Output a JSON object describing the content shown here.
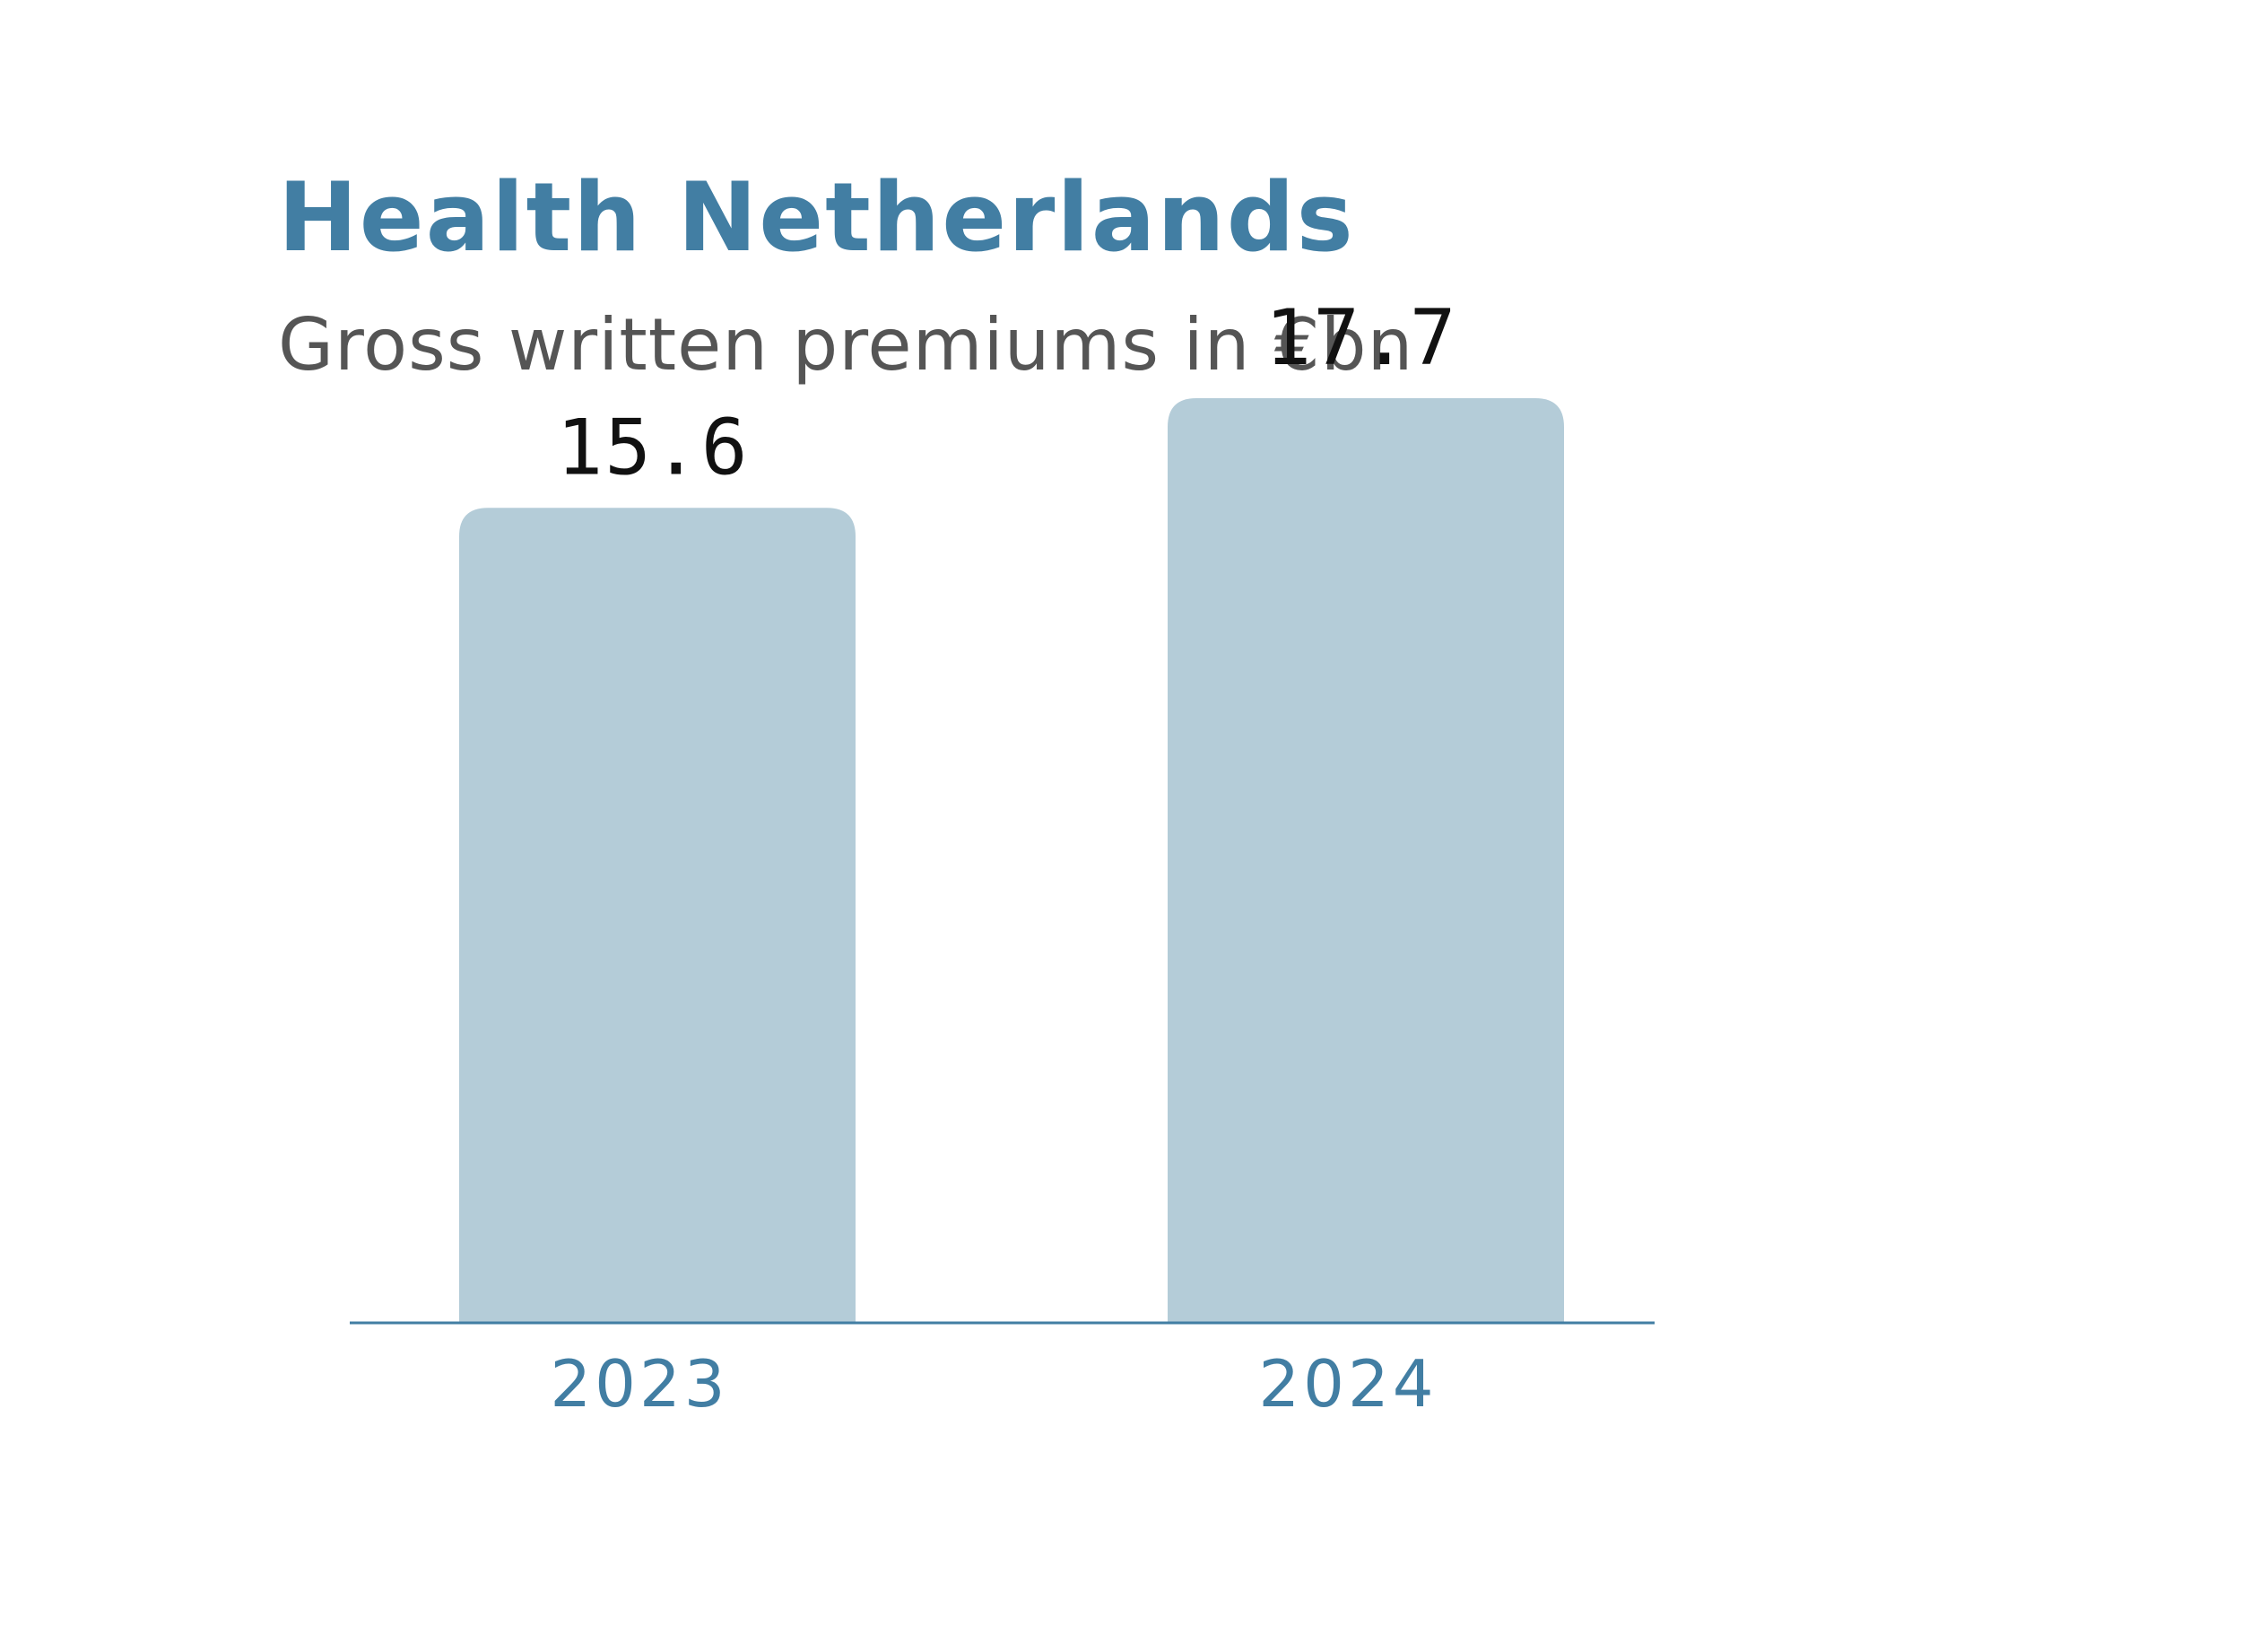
{
  "colors": {
    "title": "#427ea3",
    "subtitle": "#555555",
    "bar": "#b4ccd8",
    "axis": "#427ea3",
    "category_label": "#427ea3",
    "value_label": "#111111"
  },
  "chart_data": {
    "type": "bar",
    "title": "Health Netherlands",
    "subtitle": "Gross written premiums in €bn",
    "categories": [
      "2023",
      "2024"
    ],
    "values": [
      15.6,
      17.7
    ],
    "value_labels": [
      "15.6",
      "17.7"
    ],
    "ylim": [
      0,
      20
    ],
    "grid": false,
    "legend": "none"
  }
}
